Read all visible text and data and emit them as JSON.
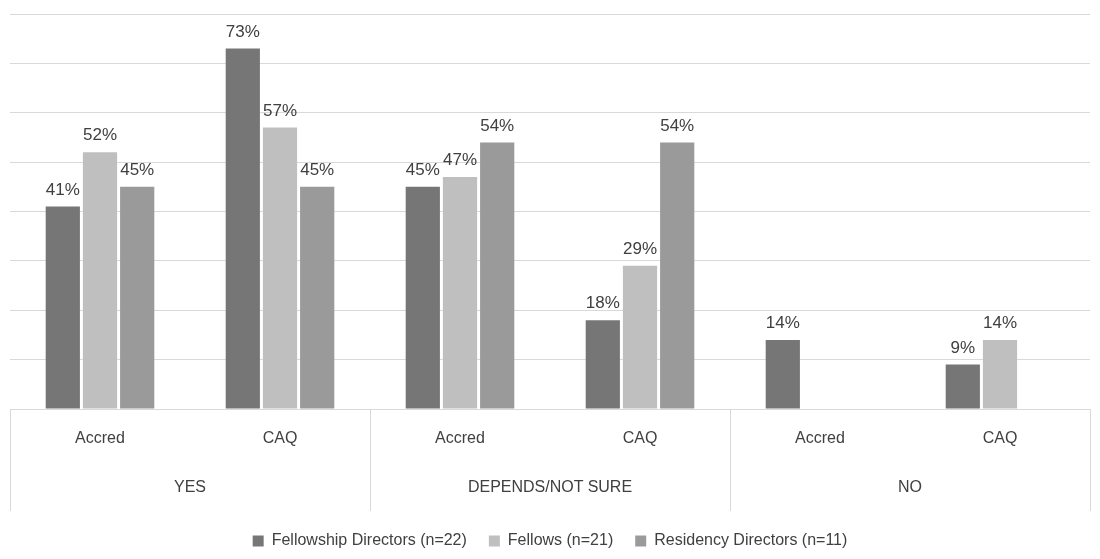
{
  "chart_data": {
    "type": "bar",
    "categories": [
      "Accred",
      "CAQ",
      "Accred",
      "CAQ",
      "Accred",
      "CAQ"
    ],
    "annotations": [
      "YES",
      "DEPENDS/NOT SURE",
      "NO"
    ],
    "series": [
      {
        "name": "Fellowship Directors (n=22)",
        "color": "#767676",
        "values": [
          41,
          73,
          45,
          18,
          14,
          9
        ],
        "value_labels": [
          "41%",
          "73%",
          "45%",
          "18%",
          "14%",
          "9%"
        ]
      },
      {
        "name": "Fellows (n=21)",
        "color": "#bfbfbf",
        "values": [
          52,
          57,
          47,
          29,
          null,
          14
        ],
        "value_labels": [
          "52%",
          "57%",
          "47%",
          "29%",
          null,
          "14%"
        ]
      },
      {
        "name": "Residency Directors (n=11)",
        "color": "#9a9a9a",
        "values": [
          45,
          45,
          54,
          54,
          null,
          null
        ],
        "value_labels": [
          "45%",
          "45%",
          "54%",
          "54%",
          null,
          null
        ]
      }
    ],
    "ylim": [
      0,
      80
    ],
    "yticks": [
      {
        "value": 0,
        "label": null
      },
      {
        "value": 10,
        "label": null
      },
      {
        "value": 20,
        "label": null
      },
      {
        "value": 30,
        "label": null
      },
      {
        "value": 40,
        "label": null
      },
      {
        "value": 50,
        "label": null
      },
      {
        "value": 60,
        "label": null
      },
      {
        "value": 70,
        "label": null
      },
      {
        "value": 80,
        "label": null
      }
    ],
    "grid": "y",
    "tick_labels": "x",
    "legend": "bottom"
  }
}
